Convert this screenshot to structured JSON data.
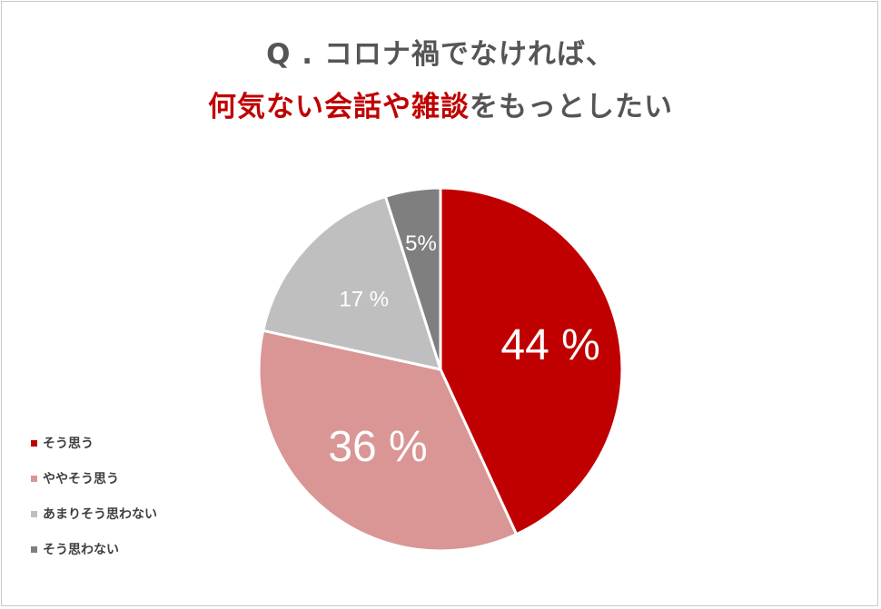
{
  "title": {
    "line1": "Q . コロナ禍でなければ、",
    "line2_accent": "何気ない会話や雑談",
    "line2_rest": "をもっとしたい"
  },
  "colors": {
    "title_text": "#555555",
    "accent": "#c00000"
  },
  "chart_data": {
    "type": "pie",
    "categories": [
      "そう思う",
      "ややそう思う",
      "あまりそう思わない",
      "そう思わない"
    ],
    "values": [
      44,
      36,
      17,
      5
    ],
    "data_labels": [
      "44 %",
      "36 %",
      "17 %",
      "5%"
    ],
    "colors": [
      "#c00000",
      "#d99694",
      "#bfbfbf",
      "#7f7f7f"
    ],
    "unit": "%",
    "legend_position": "left-bottom",
    "start_angle": "12 o'clock",
    "direction": "clockwise"
  }
}
